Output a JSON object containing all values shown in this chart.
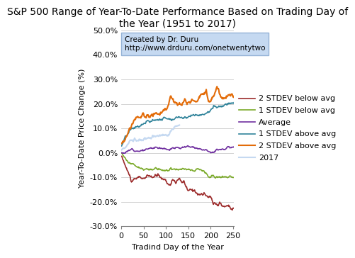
{
  "title": "S&P 500 Range of Year-To-Date Performance Based on Trading Day of\nthe Year (1951 to 2017)",
  "xlabel": "Tradind Day of the Year",
  "ylabel": "Year-To-Date Price Change (%)",
  "xlim": [
    0,
    252
  ],
  "ylim": [
    -30,
    50
  ],
  "yticks": [
    -30,
    -20,
    -10,
    0,
    10,
    20,
    30,
    40,
    50
  ],
  "ytick_labels": [
    "-30.0%",
    "-20.0%",
    "-10.0%",
    "0.0%",
    "10.0%",
    "20.0%",
    "30.0%",
    "40.0%",
    "50.0%"
  ],
  "xticks": [
    0,
    50,
    100,
    150,
    200,
    250
  ],
  "colors": {
    "2stdev_below": "#9C2B2B",
    "1stdev_below": "#7BAA2A",
    "average": "#7030A0",
    "1stdev_above": "#31849B",
    "2stdev_above": "#E36C09",
    "2017": "#C5D9F1"
  },
  "legend_labels": [
    "2 STDEV below avg",
    "1 STDEV below avg",
    "Average",
    "1 STDEV above avg",
    "2 STDEV above avg",
    "2017"
  ],
  "annotation_line1": "Created by Dr. Duru",
  "annotation_line2": "http://www.drduru.com/onetwentytwo",
  "annotation_box_facecolor": "#C5D9F1",
  "annotation_box_edgecolor": "#95B3D7",
  "background_color": "#FFFFFF",
  "plot_bg_color": "#FFFFFF",
  "grid_color": "#C0C0C0",
  "title_fontsize": 10,
  "axis_label_fontsize": 8,
  "tick_fontsize": 8,
  "legend_fontsize": 8,
  "linewidth": 1.2
}
